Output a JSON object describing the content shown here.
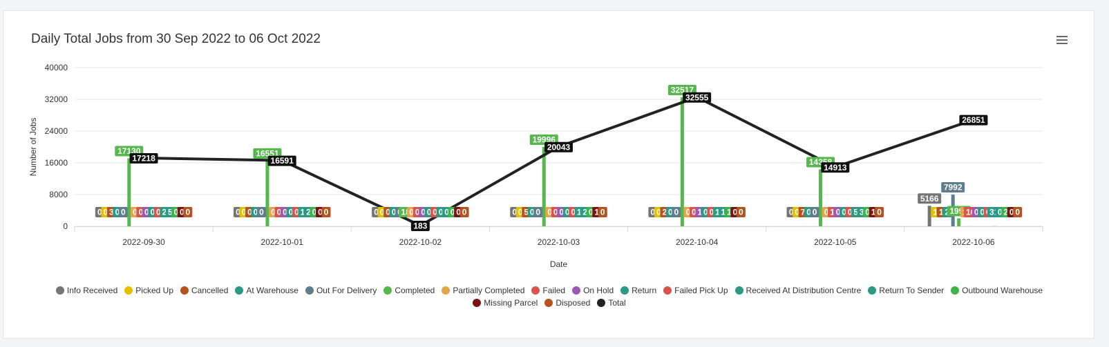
{
  "title": "Daily Total Jobs from 30 Sep 2022 to 06 Oct 2022",
  "menu_icon": "hamburger-menu-icon",
  "chart_data": {
    "type": "bar",
    "title": "Daily Total Jobs from 30 Sep 2022 to 06 Oct 2022",
    "xlabel": "Date",
    "ylabel": "Number of Jobs",
    "ylim": [
      0,
      40000
    ],
    "yticks": [
      "0",
      "8000",
      "16000",
      "24000",
      "32000",
      "40000"
    ],
    "categories": [
      "2022-09-30",
      "2022-10-01",
      "2022-10-02",
      "2022-10-03",
      "2022-10-04",
      "2022-10-05",
      "2022-10-06"
    ],
    "grid": true,
    "legend_position": "bottom",
    "series": [
      {
        "name": "Info Received",
        "color": "#757575",
        "type": "bar",
        "values": [
          0,
          0,
          0,
          0,
          0,
          0,
          5166
        ]
      },
      {
        "name": "Picked Up",
        "color": "#e2c200",
        "type": "bar",
        "values": [
          0,
          0,
          0,
          0,
          0,
          0,
          1
        ]
      },
      {
        "name": "Cancelled",
        "color": "#b5531f",
        "type": "bar",
        "values": [
          3,
          0,
          0,
          5,
          2,
          7,
          1
        ]
      },
      {
        "name": "At Warehouse",
        "color": "#2a9a82",
        "type": "bar",
        "values": [
          0,
          0,
          0,
          0,
          0,
          0,
          2
        ]
      },
      {
        "name": "Out For Delivery",
        "color": "#5f7d8c",
        "type": "bar",
        "values": [
          0,
          0,
          0,
          0,
          0,
          0,
          7992
        ]
      },
      {
        "name": "Completed",
        "color": "#55b84c",
        "type": "bar",
        "values": [
          17130,
          16551,
          18,
          19996,
          32517,
          14358,
          1993
        ]
      },
      {
        "name": "Partially Completed",
        "color": "#e5a64a",
        "type": "bar",
        "values": [
          0,
          0,
          0,
          0,
          0,
          0,
          1
        ]
      },
      {
        "name": "Failed",
        "color": "#d9534f",
        "type": "bar",
        "values": [
          0,
          0,
          0,
          0,
          0,
          1,
          16
        ]
      },
      {
        "name": "On Hold",
        "color": "#9b59b6",
        "type": "bar",
        "values": [
          0,
          0,
          0,
          0,
          1,
          0,
          0
        ]
      },
      {
        "name": "Return",
        "color": "#2a9a82",
        "type": "bar",
        "values": [
          0,
          0,
          0,
          0,
          0,
          0,
          0
        ]
      },
      {
        "name": "Failed Pick Up",
        "color": "#d9534f",
        "type": "bar",
        "values": [
          0,
          0,
          0,
          0,
          0,
          0,
          0
        ]
      },
      {
        "name": "Received At Distribution Centre",
        "color": "#2a9a82",
        "type": "bar",
        "values": [
          2,
          1,
          0,
          1,
          1,
          5,
          31
        ]
      },
      {
        "name": "Return To Sender",
        "color": "#2a9a82",
        "type": "bar",
        "values": [
          5,
          2,
          0,
          2,
          1,
          3,
          0
        ]
      },
      {
        "name": "Outbound Warehouse",
        "color": "#3cb44b",
        "type": "bar",
        "values": [
          0,
          0,
          0,
          0,
          1,
          0,
          2
        ]
      },
      {
        "name": "Missing Parcel",
        "color": "#7a1414",
        "type": "bar",
        "values": [
          0,
          0,
          0,
          1,
          0,
          1,
          0
        ]
      },
      {
        "name": "Disposed",
        "color": "#b5531f",
        "type": "bar",
        "values": [
          0,
          0,
          0,
          0,
          0,
          0,
          0
        ]
      },
      {
        "name": "Total",
        "color": "#222222",
        "type": "line",
        "values": [
          17218,
          16591,
          183,
          20043,
          32555,
          14913,
          26851
        ]
      }
    ]
  }
}
